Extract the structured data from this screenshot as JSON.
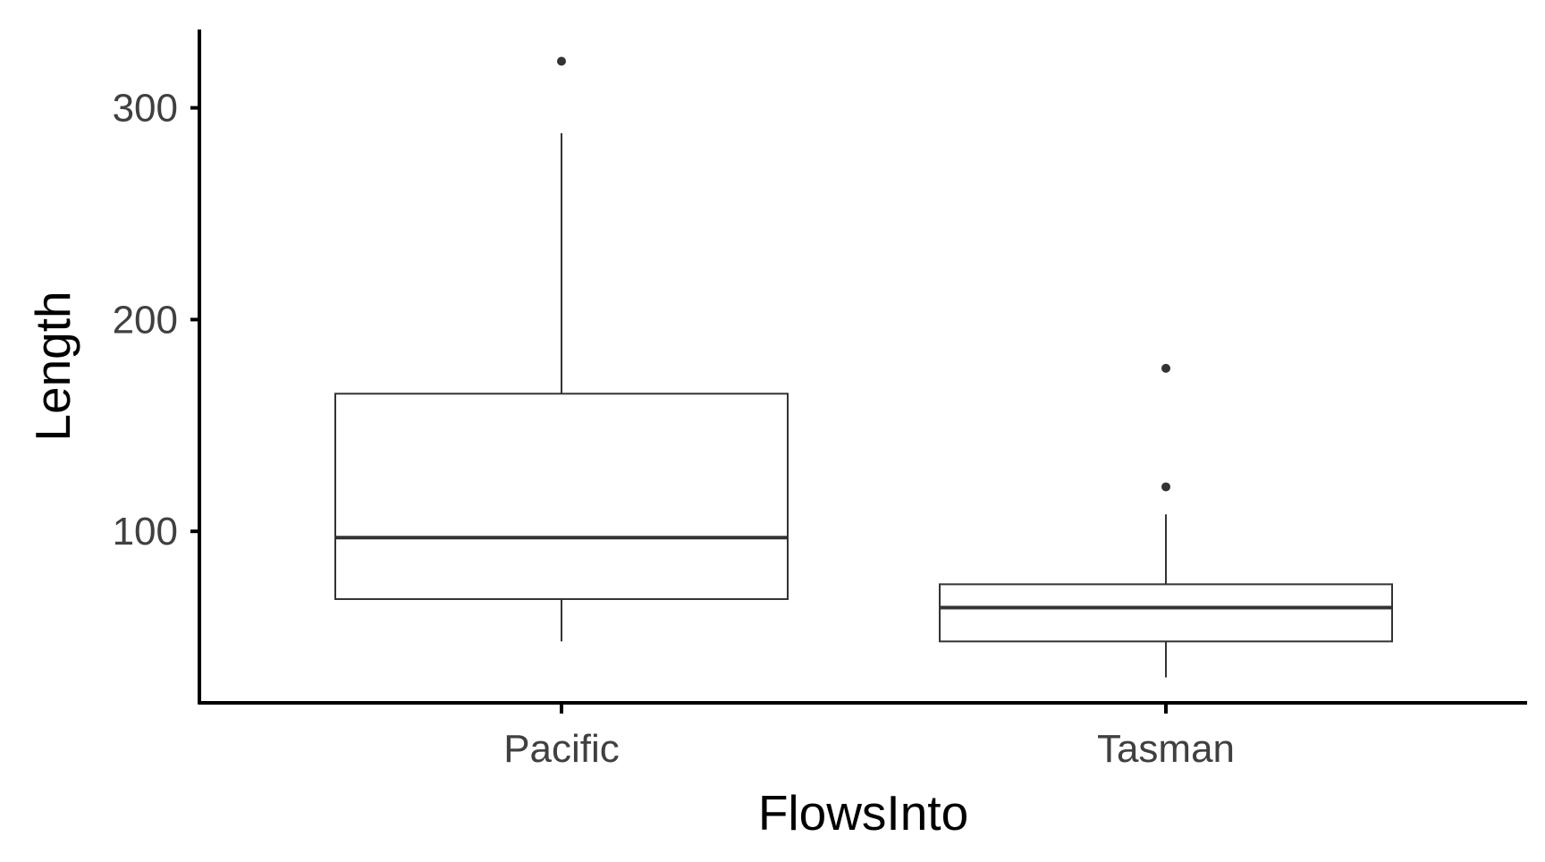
{
  "chart_data": {
    "type": "boxplot",
    "title": "",
    "xlabel": "FlowsInto",
    "ylabel": "Length",
    "ylim": [
      19,
      337
    ],
    "y_ticks": [
      100,
      200,
      300
    ],
    "grid": false,
    "legend": "none",
    "categories": [
      "Pacific",
      "Tasman"
    ],
    "boxes": [
      {
        "category": "Pacific",
        "whisker_low": 48,
        "q1": 68,
        "median": 97,
        "q3": 165,
        "whisker_high": 288,
        "outliers": [
          322
        ]
      },
      {
        "category": "Tasman",
        "whisker_low": 31,
        "q1": 48,
        "median": 64,
        "q3": 75,
        "whisker_high": 108,
        "outliers": [
          121,
          177
        ]
      }
    ],
    "colors": {
      "box_fill": "#ffffff",
      "box_line": "#333333",
      "axis_line": "#000000",
      "tick_text": "#404040",
      "title_text": "#000000"
    }
  }
}
